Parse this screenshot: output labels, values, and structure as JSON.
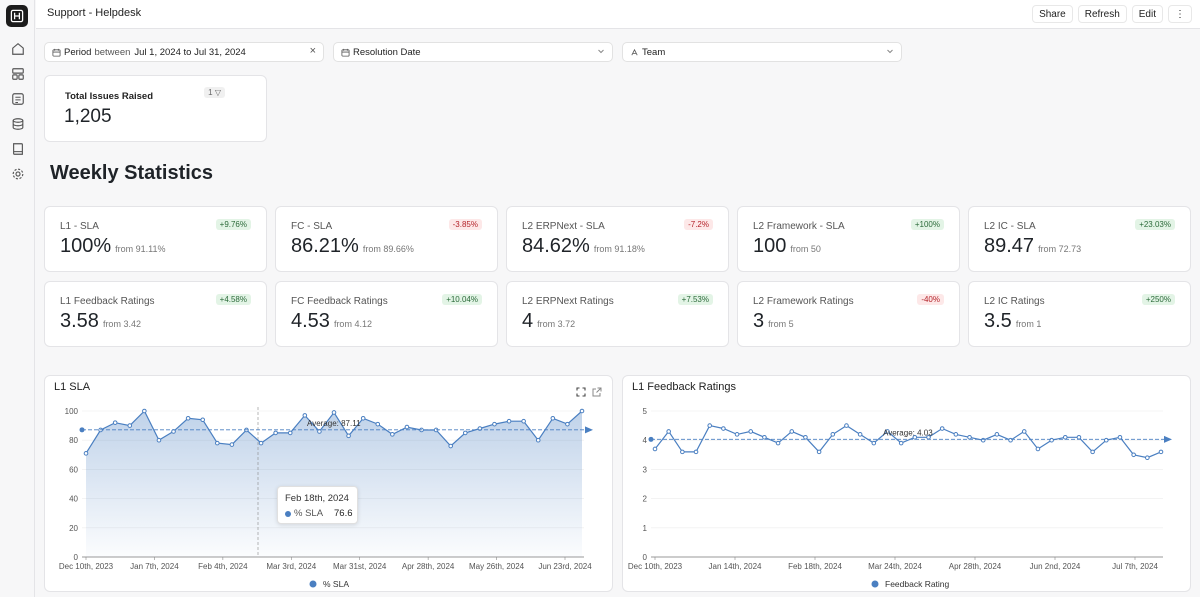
{
  "app": {
    "title": "Support - Helpdesk"
  },
  "toolbar": {
    "share": "Share",
    "refresh": "Refresh",
    "edit": "Edit",
    "more": "⋮"
  },
  "filters": {
    "period": {
      "label": "Period",
      "op": "between",
      "value": "Jul 1, 2024 to Jul 31, 2024",
      "clear": "×"
    },
    "resolution": {
      "label": "Resolution Date"
    },
    "team": {
      "label": "Team"
    }
  },
  "total": {
    "title": "Total Issues Raised",
    "value": "1,205",
    "badge": "1 ▽"
  },
  "weekly": {
    "title": "Weekly Statistics"
  },
  "metrics": [
    {
      "title": "L1 - SLA",
      "value": "100%",
      "from": "from 91.11%",
      "delta": "+9.76%",
      "trend": "pos"
    },
    {
      "title": "FC - SLA",
      "value": "86.21%",
      "from": "from 89.66%",
      "delta": "-3.85%",
      "trend": "neg"
    },
    {
      "title": "L2 ERPNext - SLA",
      "value": "84.62%",
      "from": "from 91.18%",
      "delta": "-7.2%",
      "trend": "neg"
    },
    {
      "title": "L2 Framework - SLA",
      "value": "100",
      "from": "from 50",
      "delta": "+100%",
      "trend": "pos"
    },
    {
      "title": "L2 IC - SLA",
      "value": "89.47",
      "from": "from 72.73",
      "delta": "+23.03%",
      "trend": "pos"
    },
    {
      "title": "L1 Feedback Ratings",
      "value": "3.58",
      "from": "from 3.42",
      "delta": "+4.58%",
      "trend": "pos"
    },
    {
      "title": "FC Feedback Ratings",
      "value": "4.53",
      "from": "from 4.12",
      "delta": "+10.04%",
      "trend": "pos"
    },
    {
      "title": "L2 ERPNext Ratings",
      "value": "4",
      "from": "from 3.72",
      "delta": "+7.53%",
      "trend": "pos"
    },
    {
      "title": "L2 Framework Ratings",
      "value": "3",
      "from": "from 5",
      "delta": "-40%",
      "trend": "neg"
    },
    {
      "title": "L2 IC Ratings",
      "value": "3.5",
      "from": "from 1",
      "delta": "+250%",
      "trend": "pos"
    }
  ],
  "colors": {
    "accent": "#4a7fc1",
    "pos": "#2c6b3a",
    "neg": "#b4232a"
  },
  "chart_data": [
    {
      "type": "area",
      "title": "L1 SLA",
      "series": [
        {
          "name": "% SLA",
          "values": [
            71,
            87,
            92,
            90,
            100,
            80,
            86,
            95,
            94,
            78,
            77,
            87,
            78,
            85,
            85,
            97,
            86,
            99,
            83,
            95,
            91,
            84,
            89,
            87,
            87,
            76,
            85,
            88,
            91,
            93,
            93,
            80,
            95,
            91,
            100
          ]
        }
      ],
      "xticks": [
        "Dec 10th, 2023",
        "Jan 7th, 2024",
        "Feb 4th, 2024",
        "Mar 3rd, 2024",
        "Mar 31st, 2024",
        "Apr 28th, 2024",
        "May 26th, 2024",
        "Jun 23rd, 2024"
      ],
      "yticks": [
        "0",
        "20",
        "40",
        "60",
        "80",
        "100"
      ],
      "ylim": [
        0,
        100
      ],
      "average_label": "Average: 87.11",
      "average": 87.11,
      "tooltip": {
        "date": "Feb 18th, 2024",
        "series": "% SLA",
        "value": "76.6"
      },
      "legend": "% SLA"
    },
    {
      "type": "line",
      "title": "L1 Feedback Ratings",
      "series": [
        {
          "name": "Feedback Rating",
          "values": [
            3.7,
            4.3,
            3.6,
            3.6,
            4.5,
            4.4,
            4.2,
            4.3,
            4.1,
            3.9,
            4.3,
            4.1,
            3.6,
            4.2,
            4.5,
            4.2,
            3.9,
            4.3,
            3.9,
            4.1,
            4.1,
            4.4,
            4.2,
            4.1,
            4.0,
            4.2,
            4.0,
            4.3,
            3.7,
            4.0,
            4.1,
            4.1,
            3.6,
            4.0,
            4.1,
            3.5,
            3.4,
            3.6
          ]
        }
      ],
      "xticks": [
        "Dec 10th, 2023",
        "Jan 14th, 2024",
        "Feb 18th, 2024",
        "Mar 24th, 2024",
        "Apr 28th, 2024",
        "Jun 2nd, 2024",
        "Jul 7th, 2024"
      ],
      "yticks": [
        "0",
        "1",
        "2",
        "3",
        "4",
        "5"
      ],
      "ylim": [
        0,
        5
      ],
      "average_label": "Average: 4.03",
      "average": 4.03,
      "legend": "Feedback Rating"
    }
  ]
}
